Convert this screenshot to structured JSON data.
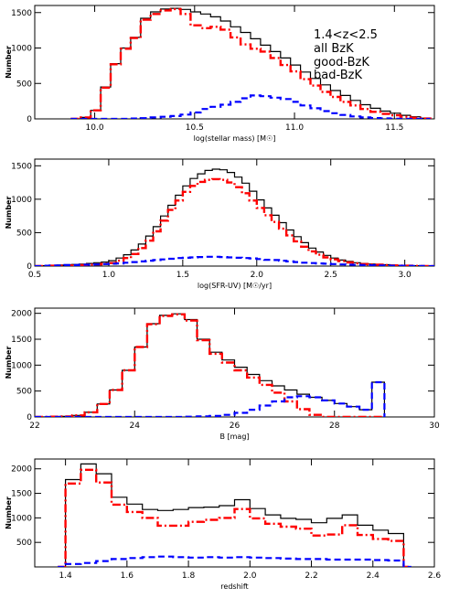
{
  "legend": {
    "title": "1.4<z<2.5",
    "entries": [
      {
        "label": "all BzK",
        "color": "#000000"
      },
      {
        "label": "good-BzK",
        "color": "#ff0000"
      },
      {
        "label": "bad-BzK",
        "color": "#0000ff"
      }
    ]
  },
  "series_styles": {
    "all": {
      "color": "#000000",
      "dash": "solid"
    },
    "good": {
      "color": "#ff0000",
      "dash": "dash-dot"
    },
    "bad": {
      "color": "#0000ff",
      "dash": "dashed"
    }
  },
  "chart_data": [
    {
      "type": "histogram",
      "xlabel": "log(stellar mass) [M☉]",
      "ylabel": "Number",
      "xlim": [
        9.7,
        11.7
      ],
      "ylim": [
        0,
        1600
      ],
      "xticks": [
        10.0,
        10.5,
        11.0,
        11.5
      ],
      "xtick_labels": [
        "10.0",
        "10.5",
        "11.0",
        "11.5"
      ],
      "yticks": [
        0,
        500,
        1000,
        1500
      ],
      "ytick_labels": [
        "0",
        "500",
        "1000",
        "1500"
      ],
      "bin_edges": [
        9.88,
        9.93,
        9.98,
        10.03,
        10.08,
        10.13,
        10.18,
        10.23,
        10.28,
        10.33,
        10.38,
        10.43,
        10.48,
        10.53,
        10.58,
        10.63,
        10.68,
        10.73,
        10.78,
        10.83,
        10.88,
        10.93,
        10.98,
        11.03,
        11.08,
        11.13,
        11.18,
        11.23,
        11.28,
        11.33,
        11.38,
        11.43,
        11.48,
        11.53,
        11.58,
        11.63,
        11.68
      ],
      "series": [
        {
          "key": "all",
          "values": [
            0,
            20,
            120,
            450,
            780,
            1000,
            1150,
            1420,
            1510,
            1550,
            1560,
            1545,
            1510,
            1480,
            1440,
            1380,
            1300,
            1220,
            1130,
            1040,
            950,
            860,
            760,
            660,
            570,
            480,
            400,
            330,
            260,
            200,
            150,
            110,
            80,
            50,
            30,
            10
          ]
        },
        {
          "key": "good",
          "values": [
            0,
            20,
            120,
            440,
            770,
            990,
            1140,
            1400,
            1480,
            1530,
            1550,
            1480,
            1320,
            1280,
            1300,
            1260,
            1150,
            1050,
            990,
            950,
            860,
            760,
            670,
            560,
            470,
            380,
            310,
            240,
            190,
            140,
            100,
            70,
            50,
            30,
            15,
            5
          ]
        },
        {
          "key": "bad",
          "values": [
            0,
            0,
            0,
            0,
            0,
            0,
            5,
            10,
            20,
            30,
            40,
            60,
            90,
            140,
            170,
            200,
            240,
            290,
            330,
            320,
            300,
            280,
            240,
            190,
            150,
            110,
            80,
            55,
            35,
            20,
            12,
            6,
            3,
            0,
            0,
            0
          ]
        }
      ]
    },
    {
      "type": "histogram",
      "xlabel": "log(SFR-UV) [M☉/yr]",
      "ylabel": "Number",
      "xlim": [
        0.5,
        3.2
      ],
      "ylim": [
        0,
        1600
      ],
      "xticks": [
        0.5,
        1.0,
        1.5,
        2.0,
        2.5,
        3.0
      ],
      "xtick_labels": [
        "0.5",
        "1.0",
        "1.5",
        "2.0",
        "2.5",
        "3.0"
      ],
      "yticks": [
        0,
        500,
        1000,
        1500
      ],
      "ytick_labels": [
        "0",
        "500",
        "1000",
        "1500"
      ],
      "bin_edges": [
        0.5,
        0.55,
        0.6,
        0.65,
        0.7,
        0.75,
        0.8,
        0.85,
        0.9,
        0.95,
        1.0,
        1.05,
        1.1,
        1.15,
        1.2,
        1.25,
        1.3,
        1.35,
        1.4,
        1.45,
        1.5,
        1.55,
        1.6,
        1.65,
        1.7,
        1.75,
        1.8,
        1.85,
        1.9,
        1.95,
        2.0,
        2.05,
        2.1,
        2.15,
        2.2,
        2.25,
        2.3,
        2.35,
        2.4,
        2.45,
        2.5,
        2.55,
        2.6,
        2.65,
        2.7,
        2.75,
        2.8,
        2.85,
        2.9,
        2.95,
        3.0,
        3.05,
        3.1,
        3.15,
        3.2
      ],
      "series": [
        {
          "key": "all",
          "values": [
            0,
            5,
            10,
            15,
            20,
            25,
            30,
            40,
            50,
            60,
            80,
            120,
            170,
            240,
            330,
            450,
            590,
            750,
            910,
            1060,
            1200,
            1310,
            1380,
            1430,
            1450,
            1440,
            1400,
            1330,
            1240,
            1120,
            990,
            870,
            760,
            650,
            540,
            440,
            350,
            270,
            210,
            160,
            120,
            90,
            70,
            50,
            40,
            30,
            25,
            20,
            15,
            10,
            8,
            5,
            3,
            0
          ]
        },
        {
          "key": "good",
          "values": [
            0,
            0,
            5,
            5,
            10,
            10,
            15,
            20,
            25,
            35,
            45,
            80,
            120,
            180,
            270,
            380,
            520,
            680,
            840,
            980,
            1110,
            1200,
            1260,
            1290,
            1300,
            1290,
            1250,
            1180,
            1090,
            980,
            870,
            760,
            660,
            560,
            460,
            370,
            290,
            220,
            170,
            130,
            100,
            75,
            55,
            40,
            30,
            25,
            20,
            15,
            10,
            8,
            5,
            3,
            2,
            0
          ]
        },
        {
          "key": "bad",
          "values": [
            0,
            5,
            10,
            10,
            15,
            15,
            20,
            20,
            25,
            30,
            35,
            40,
            50,
            60,
            70,
            80,
            90,
            100,
            110,
            120,
            125,
            130,
            135,
            140,
            140,
            135,
            130,
            125,
            120,
            115,
            105,
            95,
            90,
            80,
            70,
            60,
            50,
            45,
            40,
            35,
            30,
            25,
            20,
            18,
            15,
            12,
            10,
            8,
            6,
            5,
            4,
            3,
            2,
            0
          ]
        }
      ]
    },
    {
      "type": "histogram",
      "xlabel": "B [mag]",
      "ylabel": "Number",
      "xlim": [
        22,
        30
      ],
      "ylim": [
        0,
        2100
      ],
      "xticks": [
        22,
        24,
        26,
        28,
        30
      ],
      "xtick_labels": [
        "22",
        "24",
        "26",
        "28",
        "30"
      ],
      "yticks": [
        0,
        500,
        1000,
        1500,
        2000
      ],
      "ytick_labels": [
        "0",
        "500",
        "1000",
        "1500",
        "2000"
      ],
      "bin_edges": [
        22.0,
        22.25,
        22.5,
        22.75,
        23.0,
        23.25,
        23.5,
        23.75,
        24.0,
        24.25,
        24.5,
        24.75,
        25.0,
        25.25,
        25.5,
        25.75,
        26.0,
        26.25,
        26.5,
        26.75,
        27.0,
        27.25,
        27.5,
        27.75,
        28.0,
        28.25,
        28.5,
        28.75,
        29.0
      ],
      "series": [
        {
          "key": "all",
          "values": [
            0,
            5,
            10,
            30,
            90,
            250,
            520,
            900,
            1350,
            1800,
            1960,
            1990,
            1880,
            1500,
            1250,
            1100,
            960,
            820,
            700,
            600,
            520,
            440,
            380,
            320,
            260,
            200,
            140,
            670
          ]
        },
        {
          "key": "good",
          "values": [
            0,
            5,
            10,
            30,
            90,
            250,
            520,
            900,
            1350,
            1790,
            1950,
            1980,
            1860,
            1480,
            1220,
            1050,
            900,
            760,
            620,
            470,
            300,
            150,
            40,
            0,
            0,
            0,
            0,
            0
          ]
        },
        {
          "key": "bad",
          "values": [
            0,
            0,
            0,
            0,
            0,
            0,
            0,
            0,
            0,
            0,
            0,
            0,
            5,
            10,
            20,
            40,
            80,
            140,
            220,
            300,
            380,
            400,
            380,
            320,
            260,
            200,
            140,
            670
          ]
        }
      ]
    },
    {
      "type": "histogram",
      "xlabel": "redshift",
      "ylabel": "Number",
      "xlim": [
        1.3,
        2.6
      ],
      "ylim": [
        0,
        2200
      ],
      "xticks": [
        1.4,
        1.6,
        1.8,
        2.0,
        2.2,
        2.4,
        2.6
      ],
      "xtick_labels": [
        "1.4",
        "1.6",
        "1.8",
        "2.0",
        "2.2",
        "2.4",
        "2.6"
      ],
      "yticks": [
        500,
        1000,
        1500,
        2000
      ],
      "ytick_labels": [
        "500",
        "1000",
        "1500",
        "2000"
      ],
      "bin_edges": [
        1.375,
        1.4,
        1.45,
        1.5,
        1.55,
        1.6,
        1.65,
        1.7,
        1.75,
        1.8,
        1.85,
        1.9,
        1.95,
        2.0,
        2.05,
        2.1,
        2.15,
        2.2,
        2.25,
        2.3,
        2.35,
        2.4,
        2.45,
        2.5,
        2.525
      ],
      "series": [
        {
          "key": "all",
          "values": [
            0,
            1780,
            2100,
            1900,
            1420,
            1280,
            1170,
            1150,
            1170,
            1210,
            1220,
            1250,
            1370,
            1190,
            1060,
            990,
            970,
            900,
            990,
            1060,
            850,
            750,
            680,
            0
          ]
        },
        {
          "key": "good",
          "values": [
            0,
            1700,
            1980,
            1720,
            1270,
            1120,
            1000,
            840,
            840,
            920,
            960,
            1000,
            1180,
            990,
            880,
            820,
            780,
            640,
            660,
            850,
            650,
            570,
            530,
            0
          ]
        },
        {
          "key": "bad",
          "values": [
            0,
            60,
            80,
            120,
            160,
            180,
            200,
            210,
            200,
            190,
            200,
            190,
            200,
            190,
            180,
            170,
            160,
            160,
            150,
            150,
            150,
            140,
            130,
            0
          ]
        }
      ]
    }
  ]
}
